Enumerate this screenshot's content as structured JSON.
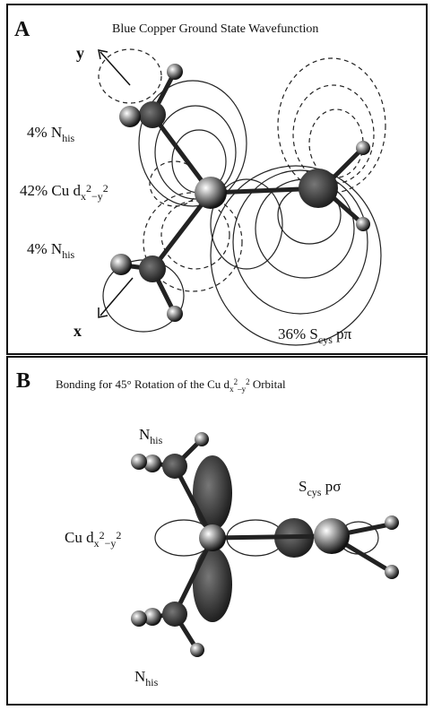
{
  "panel_a": {
    "letter": "A",
    "title": "Blue Copper Ground State Wavefunction",
    "axis_y": "y",
    "axis_x": "x",
    "n_his_top": [
      "4% N",
      "his"
    ],
    "cu": [
      "42% Cu d",
      "x",
      "2",
      "−y",
      "2"
    ],
    "n_his_bottom": [
      "4% N",
      "his"
    ],
    "s_cys": [
      "36% S",
      "cys",
      " pπ"
    ]
  },
  "panel_b": {
    "letter": "B",
    "title": [
      "Bonding for 45° Rotation of the Cu d",
      "x",
      "2",
      "–y",
      "2",
      " Orbital"
    ],
    "n_his_top": [
      "N",
      "his"
    ],
    "s_cys": [
      "S",
      "cys",
      " pσ"
    ],
    "cu": [
      "Cu d",
      "x",
      "2",
      "−y",
      "2"
    ],
    "n_his_bottom": [
      "N",
      "his"
    ]
  }
}
